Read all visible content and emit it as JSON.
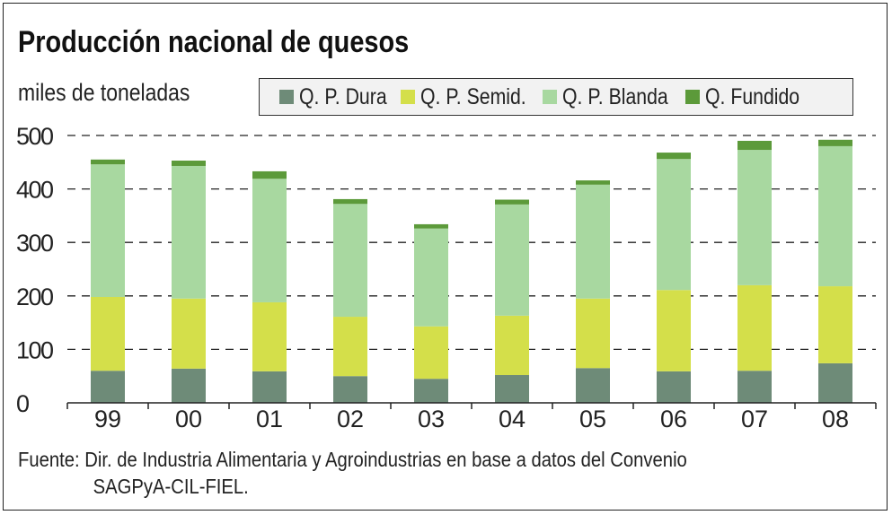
{
  "chart_data": {
    "type": "bar",
    "stacked": true,
    "title": "Producción nacional de quesos",
    "ylabel": "miles de toneladas",
    "ylim": [
      0,
      500
    ],
    "yticks": [
      0,
      100,
      200,
      300,
      400,
      500
    ],
    "categories": [
      "99",
      "00",
      "01",
      "02",
      "03",
      "04",
      "05",
      "06",
      "07",
      "08"
    ],
    "series": [
      {
        "name": "Q. P. Dura",
        "color": "#6e8b78",
        "values": [
          60,
          64,
          59,
          50,
          45,
          52,
          65,
          59,
          60,
          74
        ]
      },
      {
        "name": "Q. P. Semid.",
        "color": "#d4df4a",
        "values": [
          138,
          131,
          129,
          111,
          98,
          111,
          130,
          152,
          160,
          144
        ]
      },
      {
        "name": "Q. P. Blanda",
        "color": "#a8d8a0",
        "values": [
          248,
          248,
          231,
          211,
          183,
          208,
          213,
          245,
          253,
          262
        ]
      },
      {
        "name": "Q. Fundido",
        "color": "#5c9a3a",
        "values": [
          9,
          10,
          14,
          9,
          8,
          9,
          8,
          12,
          17,
          12
        ]
      }
    ],
    "grid": "dashed-horizontal",
    "legend": "top-right",
    "source": [
      "Fuente: Dir. de Industria Alimentaria y Agroindustrias en base a datos del Convenio",
      "SAGPyA-CIL-FIEL."
    ]
  }
}
